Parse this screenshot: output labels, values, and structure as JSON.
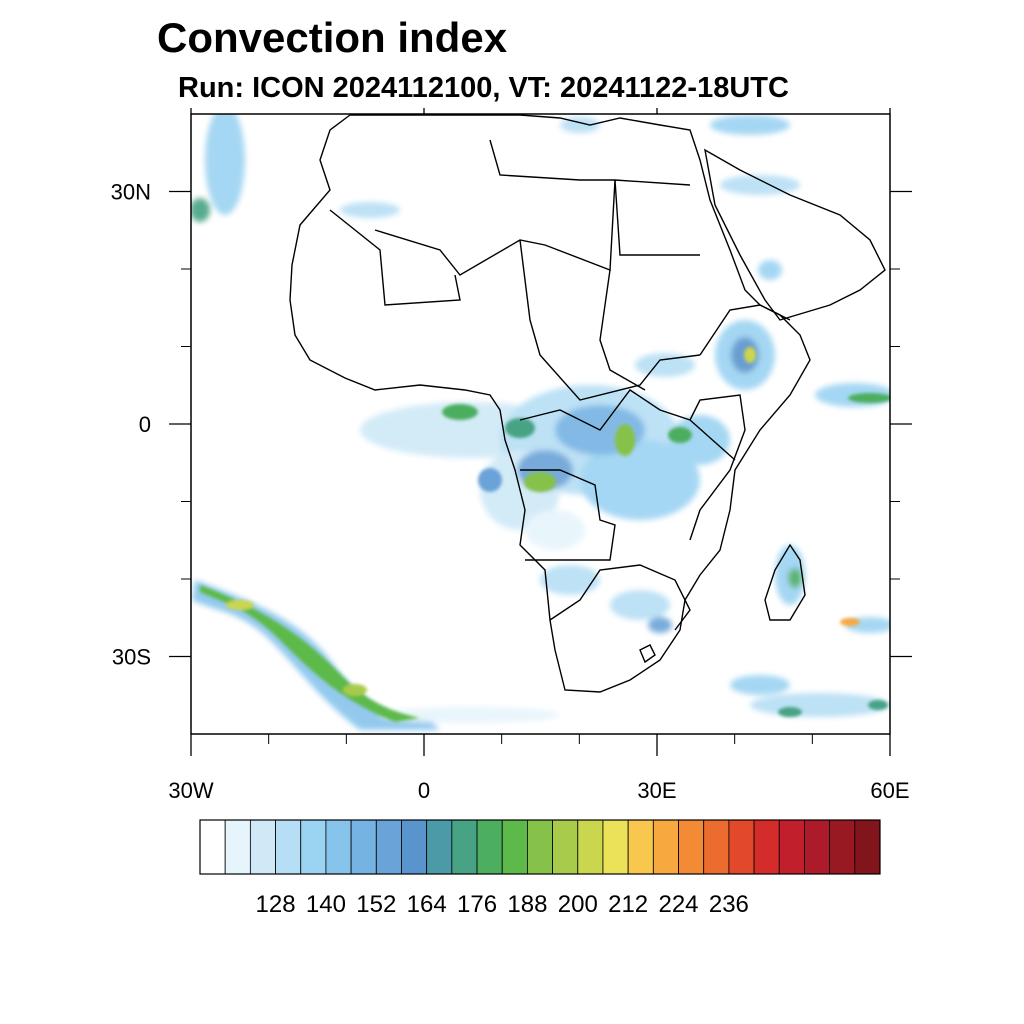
{
  "title": "Convection index",
  "subtitle": "Run: ICON 2024112100,  VT: 20241122-18UTC",
  "map": {
    "lon_range": [
      -30,
      60
    ],
    "lat_range": [
      -40,
      40
    ],
    "x_ticks": [
      {
        "lon": -30,
        "label": "30W"
      },
      {
        "lon": 0,
        "label": "0"
      },
      {
        "lon": 30,
        "label": "30E"
      },
      {
        "lon": 60,
        "label": "60E"
      }
    ],
    "y_ticks": [
      {
        "lat": 30,
        "label": "30N"
      },
      {
        "lat": 0,
        "label": "0"
      },
      {
        "lat": -30,
        "label": "30S"
      }
    ],
    "minor_lon": [
      -20,
      -10,
      10,
      20,
      40,
      50
    ],
    "minor_lat": [
      20,
      10,
      -10,
      -20
    ]
  },
  "colorbar": {
    "colors": [
      "#ffffff",
      "#e6f4fb",
      "#cfe9f7",
      "#b6def4",
      "#9bd3f2",
      "#87c4ec",
      "#75b3e3",
      "#6aa3d8",
      "#5a94cc",
      "#4b9aa8",
      "#47a383",
      "#4cae5f",
      "#5db94a",
      "#86c24a",
      "#a9cb4b",
      "#cbd64f",
      "#ece25a",
      "#f8c84e",
      "#f7a93f",
      "#f28a36",
      "#ec6b2e",
      "#e1492a",
      "#d42c2a",
      "#c21f2c",
      "#ad1b2a",
      "#991922",
      "#82151b"
    ],
    "tick_labels": [
      "128",
      "140",
      "152",
      "164",
      "176",
      "188",
      "200",
      "212",
      "224",
      "236"
    ]
  }
}
